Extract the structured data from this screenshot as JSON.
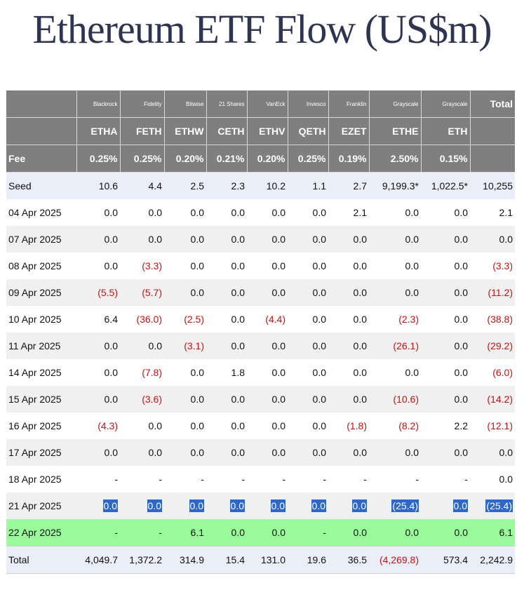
{
  "title": "Ethereum ETF Flow (US$m)",
  "colors": {
    "header_bg": "#7f7f7f",
    "row_light": "#e9eef8",
    "row_alt": "#f0f0f0",
    "highlight_row": "#9afb9a",
    "negative": "#cc1111",
    "selected_bg": "#2d67c9"
  },
  "header": {
    "issuers": [
      "Blackrock",
      "Fidelity",
      "Bitwise",
      "21 Shares",
      "VanEck",
      "Invesco",
      "Franklin",
      "Grayscale",
      "Grayscale"
    ],
    "total_label": "Total",
    "tickers": [
      "ETHA",
      "FETH",
      "ETHW",
      "CETH",
      "ETHV",
      "QETH",
      "EZET",
      "ETHE",
      "ETH"
    ],
    "fee_label": "Fee",
    "fees": [
      "0.25%",
      "0.25%",
      "0.20%",
      "0.21%",
      "0.20%",
      "0.25%",
      "0.19%",
      "2.50%",
      "0.15%"
    ]
  },
  "rows": [
    {
      "label": "Seed",
      "values": [
        "10.6",
        "4.4",
        "2.5",
        "2.3",
        "10.2",
        "1.1",
        "2.7",
        "9,199.3*",
        "1,022.5*",
        "10,255"
      ]
    },
    {
      "label": "04 Apr 2025",
      "values": [
        "0.0",
        "0.0",
        "0.0",
        "0.0",
        "0.0",
        "0.0",
        "2.1",
        "0.0",
        "0.0",
        "2.1"
      ]
    },
    {
      "label": "07 Apr 2025",
      "values": [
        "0.0",
        "0.0",
        "0.0",
        "0.0",
        "0.0",
        "0.0",
        "0.0",
        "0.0",
        "0.0",
        "0.0"
      ]
    },
    {
      "label": "08 Apr 2025",
      "values": [
        "0.0",
        "(3.3)",
        "0.0",
        "0.0",
        "0.0",
        "0.0",
        "0.0",
        "0.0",
        "0.0",
        "(3.3)"
      ]
    },
    {
      "label": "09 Apr 2025",
      "values": [
        "(5.5)",
        "(5.7)",
        "0.0",
        "0.0",
        "0.0",
        "0.0",
        "0.0",
        "0.0",
        "0.0",
        "(11.2)"
      ]
    },
    {
      "label": "10 Apr 2025",
      "values": [
        "6.4",
        "(36.0)",
        "(2.5)",
        "0.0",
        "(4.4)",
        "0.0",
        "0.0",
        "(2.3)",
        "0.0",
        "(38.8)"
      ]
    },
    {
      "label": "11 Apr 2025",
      "values": [
        "0.0",
        "0.0",
        "(3.1)",
        "0.0",
        "0.0",
        "0.0",
        "0.0",
        "(26.1)",
        "0.0",
        "(29.2)"
      ]
    },
    {
      "label": "14 Apr 2025",
      "values": [
        "0.0",
        "(7.8)",
        "0.0",
        "1.8",
        "0.0",
        "0.0",
        "0.0",
        "0.0",
        "0.0",
        "(6.0)"
      ]
    },
    {
      "label": "15 Apr 2025",
      "values": [
        "0.0",
        "(3.6)",
        "0.0",
        "0.0",
        "0.0",
        "0.0",
        "0.0",
        "(10.6)",
        "0.0",
        "(14.2)"
      ]
    },
    {
      "label": "16 Apr 2025",
      "values": [
        "(4.3)",
        "0.0",
        "0.0",
        "0.0",
        "0.0",
        "0.0",
        "(1.8)",
        "(8.2)",
        "2.2",
        "(12.1)"
      ]
    },
    {
      "label": "17 Apr 2025",
      "values": [
        "0.0",
        "0.0",
        "0.0",
        "0.0",
        "0.0",
        "0.0",
        "0.0",
        "0.0",
        "0.0",
        "0.0"
      ]
    },
    {
      "label": "18 Apr 2025",
      "values": [
        "-",
        "-",
        "-",
        "-",
        "-",
        "-",
        "-",
        "-",
        "-",
        "0.0"
      ]
    },
    {
      "label": "21 Apr 2025",
      "values": [
        "0.0",
        "0.0",
        "0.0",
        "0.0",
        "0.0",
        "0.0",
        "0.0",
        "(25.4)",
        "0.0",
        "(25.4)"
      ]
    },
    {
      "label": "22 Apr 2025",
      "values": [
        "-",
        "-",
        "6.1",
        "0.0",
        "0.0",
        "-",
        "0.0",
        "0.0",
        "0.0",
        "6.1"
      ]
    },
    {
      "label": "Total",
      "values": [
        "4,049.7",
        "1,372.2",
        "314.9",
        "15.4",
        "131.0",
        "19.6",
        "36.5",
        "(4,269.8)",
        "573.4",
        "2,242.9"
      ]
    }
  ]
}
